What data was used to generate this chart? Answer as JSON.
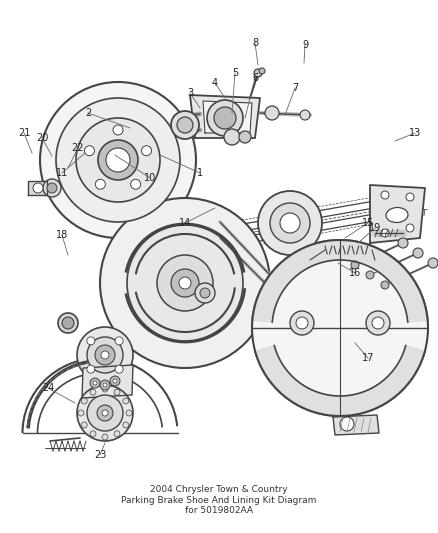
{
  "title": "2004 Chrysler Town & Country\nParking Brake Shoe And Lining Kit Diagram\nfor 5019802AA",
  "bg": "#ffffff",
  "lc": "#444444",
  "title_fs": 6.5,
  "fig_w": 4.38,
  "fig_h": 5.33,
  "dpi": 100
}
